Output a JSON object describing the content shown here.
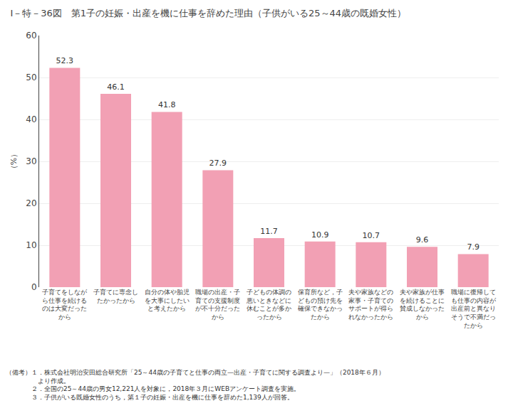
{
  "chart_data": {
    "type": "bar",
    "title": "Ⅰ－特－36図　第1子の妊娠・出産を機に仕事を辞めた理由（子供がいる25～44歳の既婚女性）",
    "ylabel": "（%）",
    "categories": [
      "子育てをしながら仕事を\n続けるのは大変だったか\nら",
      "子育てに専念したかった\nから",
      "自分の体や胎児を大事に\nしたいと考えたから",
      "職場の出産・子育ての支\n援制度が不十分だったか\nら",
      "子どもの体調の悪いとき\nなどに休むことが多かっ\nたから",
      "保育所など，子どもの預\nけ先を確保できなかった\nから",
      "夫や家族などの家事・子\n育てのサポートが得られ\nなかったから",
      "夫や家族が仕事を続ける\nことに賛成しなかったか\nら",
      "職場に復帰しても仕事の\n内容が出産前と異なりそ\nうで不満だったから"
    ],
    "values": [
      52.3,
      46.1,
      41.8,
      27.9,
      11.7,
      10.9,
      10.7,
      9.6,
      7.9
    ],
    "color": "#F2A0B4",
    "ylim": [
      0,
      60
    ],
    "yticks": [
      0,
      10,
      20,
      30,
      40,
      50,
      60
    ],
    "grid": true,
    "data_labels": true,
    "annotations": [
      "（備考）１．株式会社明治安田総合研究所「25～44歳の子育てと仕事の両立—出産・子育てに関する調査より—」（2018年６月）",
      "　　　　　より作成。",
      "　　　　２．全国の25～44歳の男女12,221人を対象に，2018年３月にWEBアンケート調査を実施。",
      "　　　　３．子供がいる既婚女性のうち，第１子の妊娠・出産を機に仕事を辞めた1,139人が回答。"
    ]
  }
}
